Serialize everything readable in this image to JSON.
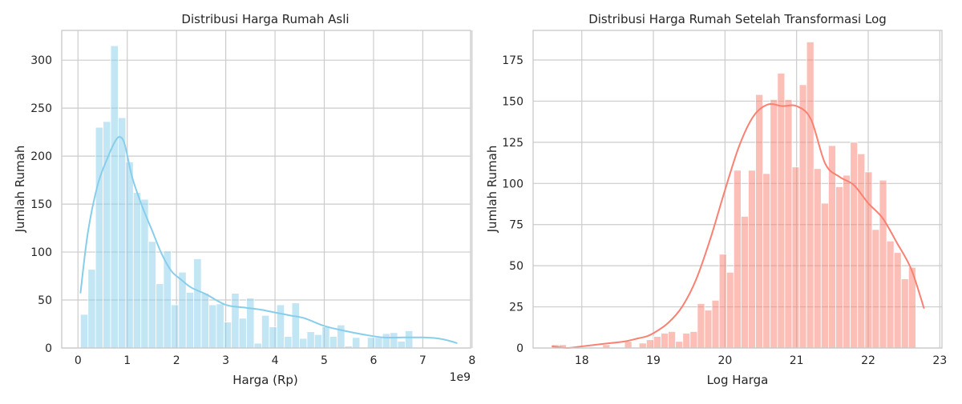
{
  "figure": {
    "background": "#ffffff",
    "grid_color": "#cccccc",
    "text_color": "#262626"
  },
  "chart_data": [
    {
      "type": "histogram",
      "title": "Distribusi Harga Rumah Asli",
      "xlabel": "Harga (Rp)",
      "ylabel": "Jumlah Rumah",
      "x_offset_text": "1e9",
      "xlim": [
        -0.33,
        7.97
      ],
      "ylim": [
        0,
        331
      ],
      "xticks": [
        0,
        1,
        2,
        3,
        4,
        5,
        6,
        7,
        8
      ],
      "xtick_labels": [
        "0",
        "1",
        "2",
        "3",
        "4",
        "5",
        "6",
        "7",
        "8"
      ],
      "yticks": [
        0,
        50,
        100,
        150,
        200,
        250,
        300
      ],
      "ytick_labels": [
        "0",
        "50",
        "100",
        "150",
        "200",
        "250",
        "300"
      ],
      "grid": true,
      "bar_color": "#87ceeb",
      "kde_color": "#87ceeb",
      "bin_start": 0.05,
      "bin_width": 0.1533,
      "counts": [
        35,
        82,
        230,
        236,
        315,
        240,
        194,
        162,
        155,
        111,
        67,
        101,
        45,
        79,
        58,
        93,
        57,
        45,
        46,
        27,
        57,
        31,
        52,
        5,
        34,
        22,
        45,
        12,
        47,
        10,
        17,
        14,
        22,
        12,
        24,
        2,
        11,
        0,
        11,
        11,
        15,
        16,
        7,
        18
      ],
      "kde": {
        "x": [
          0.05,
          0.2,
          0.4,
          0.6,
          0.75,
          0.85,
          0.95,
          1.1,
          1.3,
          1.5,
          1.7,
          1.9,
          2.1,
          2.3,
          2.6,
          3.0,
          3.4,
          3.7,
          4.0,
          4.3,
          4.6,
          5.0,
          5.4,
          5.8,
          6.2,
          6.6,
          7.0,
          7.3,
          7.5,
          7.7
        ],
        "y": [
          57,
          120,
          170,
          198,
          215,
          220,
          212,
          178,
          148,
          123,
          98,
          80,
          71,
          63,
          56,
          45,
          42,
          40,
          37,
          34,
          31,
          23,
          18,
          14,
          11,
          11,
          11,
          10,
          8,
          5
        ]
      }
    },
    {
      "type": "histogram",
      "title": "Distribusi Harga Rumah Setelah Transformasi Log",
      "xlabel": "Log Harga",
      "ylabel": "Jumlah Rumah",
      "xlim": [
        17.32,
        23.03
      ],
      "ylim": [
        0,
        193
      ],
      "xticks": [
        18,
        19,
        20,
        21,
        22,
        23
      ],
      "xtick_labels": [
        "18",
        "19",
        "20",
        "21",
        "22",
        "23"
      ],
      "yticks": [
        0,
        25,
        50,
        75,
        100,
        125,
        150,
        175
      ],
      "ytick_labels": [
        "0",
        "25",
        "50",
        "75",
        "100",
        "125",
        "150",
        "175"
      ],
      "grid": true,
      "bar_color": "#fa8072",
      "kde_color": "#fa8072",
      "bin_start": 17.58,
      "bin_width": 0.1017,
      "counts": [
        2,
        2,
        0,
        0,
        0,
        0,
        0,
        2,
        0,
        0,
        4,
        0,
        3,
        5,
        7,
        9,
        10,
        4,
        9,
        10,
        27,
        23,
        29,
        57,
        46,
        108,
        80,
        108,
        154,
        106,
        151,
        167,
        151,
        110,
        160,
        186,
        109,
        88,
        123,
        98,
        105,
        125,
        118,
        107,
        72,
        102,
        65,
        58,
        42,
        49
      ],
      "kde": {
        "x": [
          17.58,
          17.8,
          18.0,
          18.2,
          18.4,
          18.6,
          18.8,
          18.9,
          19.0,
          19.2,
          19.4,
          19.6,
          19.8,
          20.0,
          20.2,
          20.4,
          20.6,
          20.8,
          21.0,
          21.2,
          21.4,
          21.6,
          21.8,
          22.0,
          22.2,
          22.4,
          22.6,
          22.78
        ],
        "y": [
          1,
          0,
          1,
          2,
          3,
          4,
          6,
          7,
          9,
          15,
          25,
          42,
          67,
          96,
          123,
          141,
          148,
          147,
          147,
          139,
          112,
          104,
          99,
          88,
          79,
          64,
          48,
          24
        ]
      }
    }
  ]
}
